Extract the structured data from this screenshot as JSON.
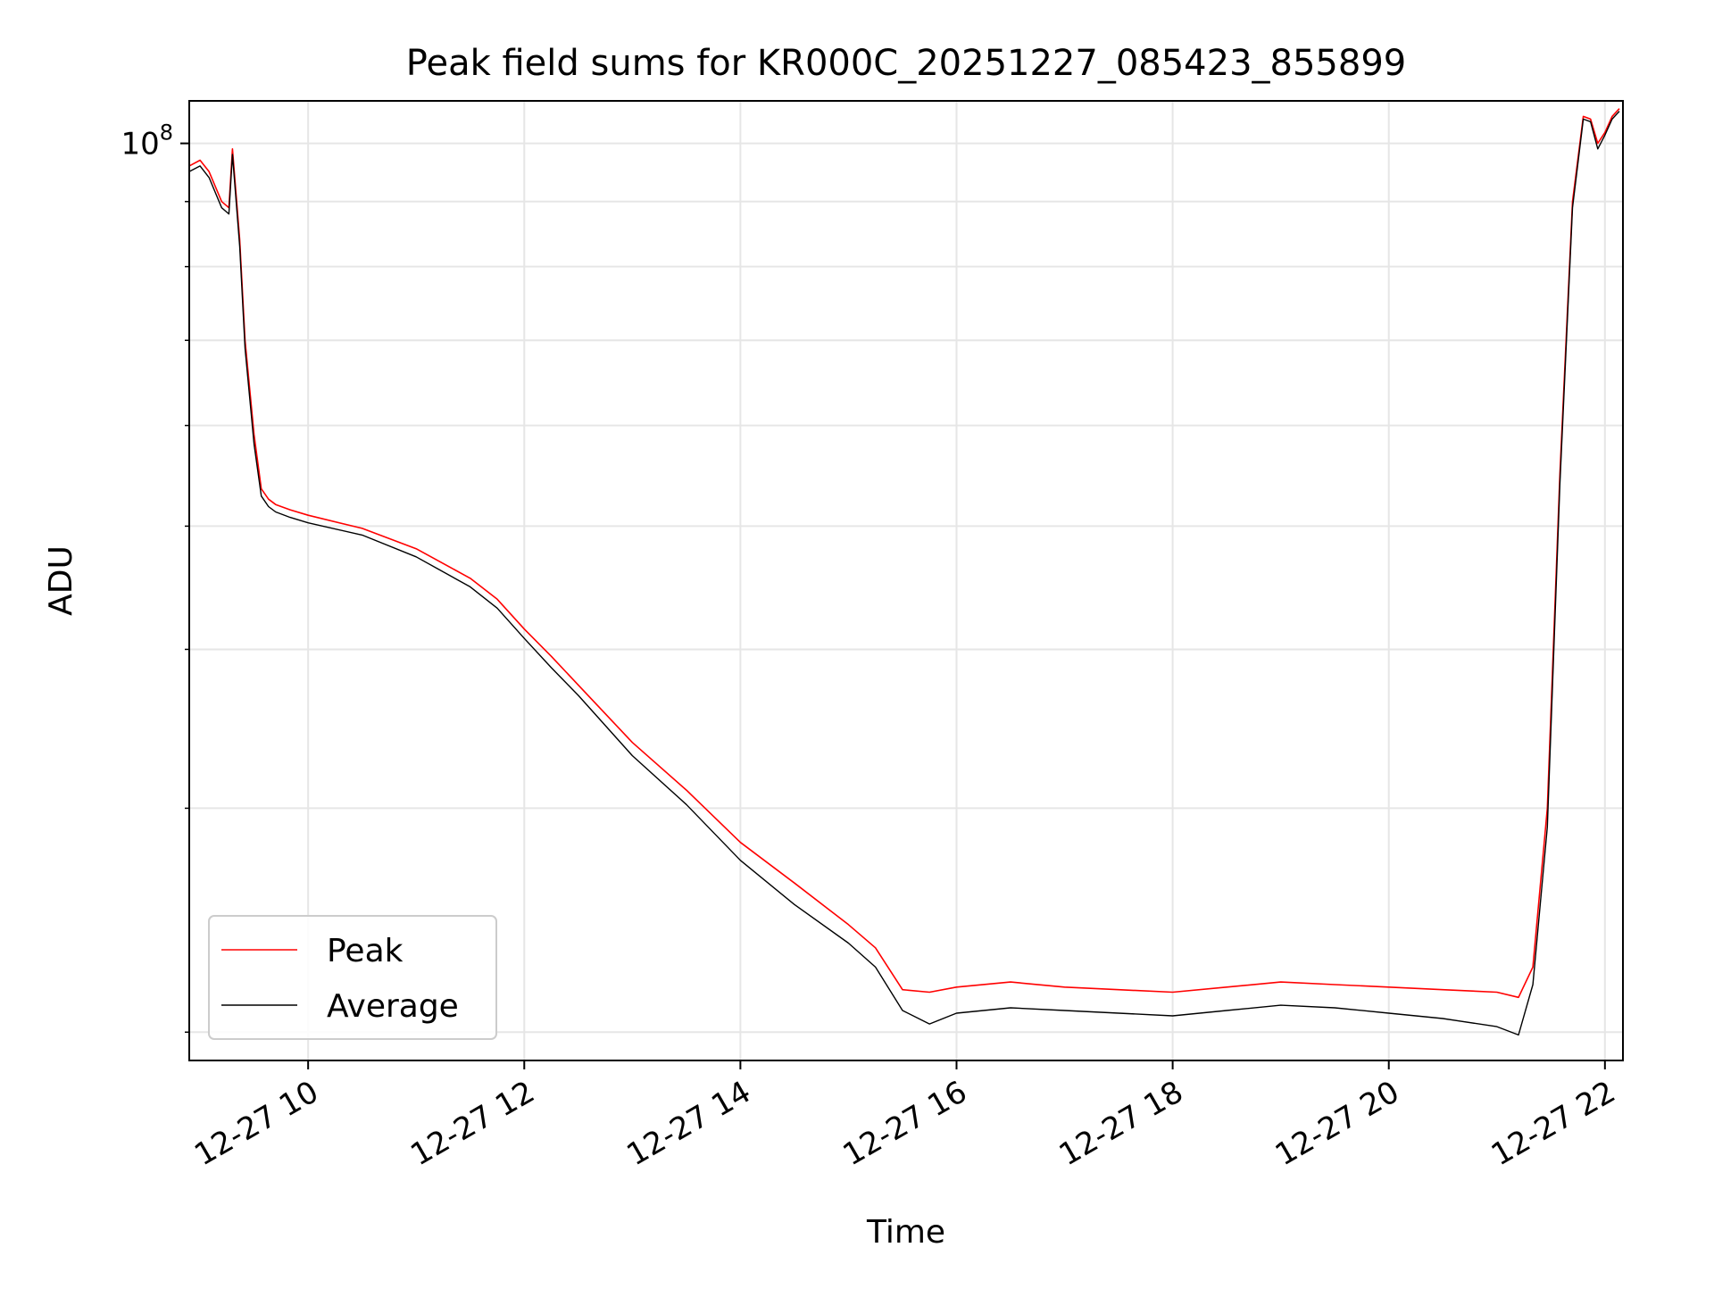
{
  "chart_data": {
    "type": "line",
    "title": "Peak field sums for KR000C_20251227_085423_855899",
    "xlabel": "Time",
    "ylabel": "ADU",
    "yscale": "log",
    "xlim": [
      "2025-12-27 08:54",
      "2025-12-27 22:10"
    ],
    "ylim": [
      19000000,
      108000000
    ],
    "grid": true,
    "legend_position": "lower-left",
    "x_ticks": [
      "12-27 10",
      "12-27 12",
      "12-27 14",
      "12-27 16",
      "12-27 18",
      "12-27 20",
      "12-27 22"
    ],
    "y_ticks": [
      {
        "base": "10",
        "exp": "8",
        "value": 100000000
      }
    ],
    "series": [
      {
        "name": "Peak",
        "color": "#ff0000",
        "x": [
          "2025-12-27 08:54",
          "2025-12-27 09:00",
          "2025-12-27 09:05",
          "2025-12-27 09:12",
          "2025-12-27 09:16",
          "2025-12-27 09:18",
          "2025-12-27 09:22",
          "2025-12-27 09:25",
          "2025-12-27 09:30",
          "2025-12-27 09:34",
          "2025-12-27 09:38",
          "2025-12-27 09:42",
          "2025-12-27 09:50",
          "2025-12-27 10:00",
          "2025-12-27 10:30",
          "2025-12-27 11:00",
          "2025-12-27 11:30",
          "2025-12-27 11:45",
          "2025-12-27 12:00",
          "2025-12-27 12:15",
          "2025-12-27 12:30",
          "2025-12-27 13:00",
          "2025-12-27 13:30",
          "2025-12-27 14:00",
          "2025-12-27 14:30",
          "2025-12-27 15:00",
          "2025-12-27 15:15",
          "2025-12-27 15:30",
          "2025-12-27 15:45",
          "2025-12-27 16:00",
          "2025-12-27 16:30",
          "2025-12-27 17:00",
          "2025-12-27 17:30",
          "2025-12-27 18:00",
          "2025-12-27 18:30",
          "2025-12-27 19:00",
          "2025-12-27 19:30",
          "2025-12-27 20:00",
          "2025-12-27 20:30",
          "2025-12-27 21:00",
          "2025-12-27 21:12",
          "2025-12-27 21:20",
          "2025-12-27 21:28",
          "2025-12-27 21:35",
          "2025-12-27 21:42",
          "2025-12-27 21:48",
          "2025-12-27 21:52",
          "2025-12-27 21:56",
          "2025-12-27 22:00",
          "2025-12-27 22:04",
          "2025-12-27 22:08"
        ],
        "values": [
          96000000,
          97000000,
          95000000,
          90000000,
          89000000,
          99000000,
          84000000,
          70000000,
          59000000,
          53500000,
          52500000,
          52000000,
          51500000,
          51000000,
          49800000,
          48000000,
          45500000,
          43800000,
          41500000,
          39500000,
          37500000,
          33800000,
          31000000,
          28200000,
          26200000,
          24300000,
          23300000,
          21600000,
          21500000,
          21700000,
          21900000,
          21700000,
          21600000,
          21500000,
          21700000,
          21900000,
          21800000,
          21700000,
          21600000,
          21500000,
          21300000,
          22500000,
          30000000,
          55000000,
          90000000,
          105000000,
          104500000,
          100000000,
          102000000,
          105000000,
          106500000
        ]
      },
      {
        "name": "Average",
        "color": "#000000",
        "x": [
          "2025-12-27 08:54",
          "2025-12-27 09:00",
          "2025-12-27 09:05",
          "2025-12-27 09:12",
          "2025-12-27 09:16",
          "2025-12-27 09:18",
          "2025-12-27 09:22",
          "2025-12-27 09:25",
          "2025-12-27 09:30",
          "2025-12-27 09:34",
          "2025-12-27 09:38",
          "2025-12-27 09:42",
          "2025-12-27 09:50",
          "2025-12-27 10:00",
          "2025-12-27 10:30",
          "2025-12-27 11:00",
          "2025-12-27 11:30",
          "2025-12-27 11:45",
          "2025-12-27 12:00",
          "2025-12-27 12:15",
          "2025-12-27 12:30",
          "2025-12-27 13:00",
          "2025-12-27 13:30",
          "2025-12-27 14:00",
          "2025-12-27 14:30",
          "2025-12-27 15:00",
          "2025-12-27 15:15",
          "2025-12-27 15:30",
          "2025-12-27 15:45",
          "2025-12-27 16:00",
          "2025-12-27 16:30",
          "2025-12-27 17:00",
          "2025-12-27 17:30",
          "2025-12-27 18:00",
          "2025-12-27 18:30",
          "2025-12-27 19:00",
          "2025-12-27 19:30",
          "2025-12-27 20:00",
          "2025-12-27 20:30",
          "2025-12-27 21:00",
          "2025-12-27 21:12",
          "2025-12-27 21:20",
          "2025-12-27 21:28",
          "2025-12-27 21:35",
          "2025-12-27 21:42",
          "2025-12-27 21:48",
          "2025-12-27 21:52",
          "2025-12-27 21:56",
          "2025-12-27 22:00",
          "2025-12-27 22:04",
          "2025-12-27 22:08"
        ],
        "values": [
          95000000,
          96000000,
          94000000,
          89000000,
          88000000,
          98000000,
          83000000,
          69000000,
          58000000,
          52800000,
          51800000,
          51300000,
          50800000,
          50300000,
          49200000,
          47300000,
          44800000,
          43100000,
          40800000,
          38700000,
          36800000,
          33000000,
          30200000,
          27300000,
          25200000,
          23500000,
          22500000,
          20800000,
          20300000,
          20700000,
          20900000,
          20800000,
          20700000,
          20600000,
          20800000,
          21000000,
          20900000,
          20700000,
          20500000,
          20200000,
          19900000,
          21800000,
          29000000,
          54000000,
          89000000,
          104500000,
          104000000,
          99000000,
          101500000,
          104500000,
          106000000
        ]
      }
    ]
  }
}
